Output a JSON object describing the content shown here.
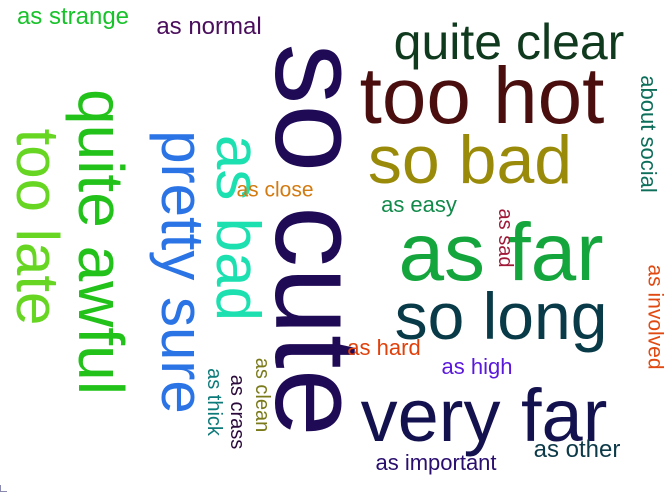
{
  "words": [
    {
      "text": "so cute",
      "color": "#1f0a55"
    },
    {
      "text": "too hot",
      "color": "#4a0e0e"
    },
    {
      "text": "quite clear",
      "color": "#103a1e"
    },
    {
      "text": "so bad",
      "color": "#9a8a0a"
    },
    {
      "text": "as far",
      "color": "#14a63c"
    },
    {
      "text": "so long",
      "color": "#083a48"
    },
    {
      "text": "very far",
      "color": "#14124e"
    },
    {
      "text": "pretty sure",
      "color": "#2b74e6"
    },
    {
      "text": "quite awful",
      "color": "#22c21a"
    },
    {
      "text": "too late",
      "color": "#66d622"
    },
    {
      "text": "as bad",
      "color": "#1de0b0"
    },
    {
      "text": "as strange",
      "color": "#18c22a"
    },
    {
      "text": "as normal",
      "color": "#4a0e5c"
    },
    {
      "text": "about social",
      "color": "#0d6e5a"
    },
    {
      "text": "as close",
      "color": "#d37a10"
    },
    {
      "text": "as easy",
      "color": "#128a4a"
    },
    {
      "text": "as sad",
      "color": "#a01838"
    },
    {
      "text": "as involved",
      "color": "#e04a12"
    },
    {
      "text": "as hard",
      "color": "#e0400a"
    },
    {
      "text": "as high",
      "color": "#5a18dc"
    },
    {
      "text": "as other",
      "color": "#0d3a48"
    },
    {
      "text": "as important",
      "color": "#2a0e6e"
    },
    {
      "text": "as clean",
      "color": "#7a7a1a"
    },
    {
      "text": "as crass",
      "color": "#2a0a3a"
    },
    {
      "text": "as thick",
      "color": "#0d7a7a"
    }
  ]
}
